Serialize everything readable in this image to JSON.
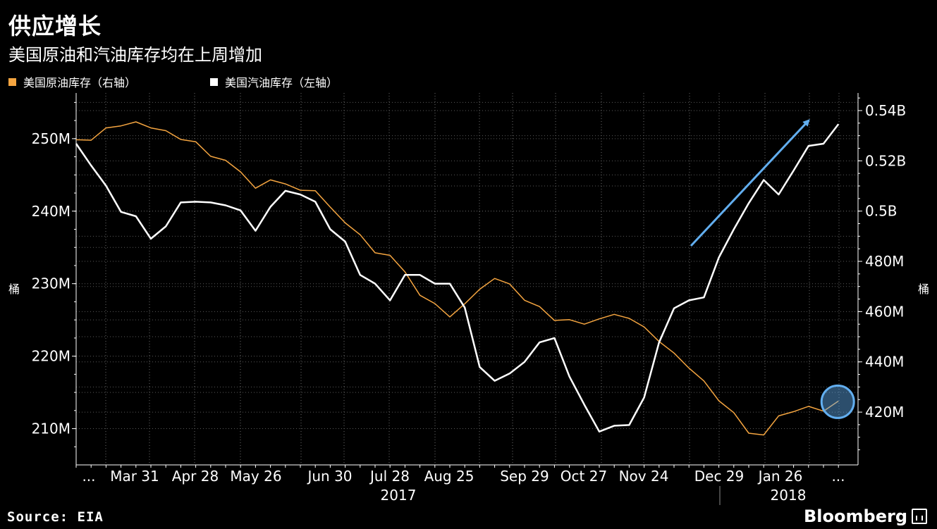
{
  "header": {
    "title": "供应增长",
    "subtitle": "美国原油和汽油库存均在上周增加"
  },
  "legend": [
    {
      "label": "美国原油库存（右轴）",
      "color": "#F5A540"
    },
    {
      "label": "美国汽油库存（左轴）",
      "color": "#FFFFFF"
    }
  ],
  "footer": {
    "source": "Source: EIA",
    "brand": "Bloomberg"
  },
  "chart_data": {
    "type": "line",
    "x_tick_labels": [
      "...",
      "Mar 31",
      "Apr 28",
      "May 26",
      "Jun 30",
      "Jul 28",
      "Aug 25",
      "Sep 29",
      "Oct 27",
      "Nov 24",
      "Dec 29",
      "Jan 26",
      "..."
    ],
    "x_year_labels": [
      "2017",
      "2018"
    ],
    "left_axis": {
      "label": "桶",
      "ticks": [
        "210M",
        "220M",
        "230M",
        "240M",
        "250M"
      ],
      "tick_values": [
        210,
        220,
        230,
        240,
        250
      ],
      "ylim": [
        205,
        256.3
      ]
    },
    "right_axis": {
      "label": "桶",
      "ticks": [
        "420M",
        "440M",
        "460M",
        "480M",
        "0.5B",
        "0.52B",
        "0.54B"
      ],
      "tick_values": [
        420,
        440,
        460,
        480,
        500,
        520,
        540
      ],
      "ylim": [
        399,
        547
      ]
    },
    "series": [
      {
        "name": "美国原油库存（右轴）",
        "axis": "right",
        "color": "#F5A540",
        "values": [
          528.4,
          528.2,
          533.1,
          533.9,
          535.5,
          533.1,
          532.0,
          528.5,
          527.6,
          521.8,
          520.2,
          515.6,
          509.1,
          512.4,
          510.8,
          508.3,
          508.1,
          501.6,
          495.3,
          490.6,
          483.4,
          482.4,
          475.8,
          466.5,
          463.2,
          457.9,
          463.1,
          468.9,
          473.2,
          471.0,
          464.5,
          462.0,
          456.5,
          456.8,
          455.0,
          457.1,
          458.9,
          457.3,
          453.9,
          448.1,
          443.5,
          437.5,
          432.4,
          424.5,
          419.8,
          411.6,
          410.9,
          418.5,
          420.2,
          422.3,
          420.4,
          424.4
        ]
      },
      {
        "name": "美国汽油库存（左轴）",
        "axis": "left",
        "color": "#FFFFFF",
        "values": [
          249.3,
          246.3,
          243.5,
          239.9,
          239.3,
          236.2,
          237.9,
          241.2,
          241.3,
          241.2,
          240.8,
          240.1,
          237.3,
          240.6,
          242.8,
          242.3,
          241.3,
          237.5,
          235.8,
          231.2,
          230.0,
          227.7,
          231.2,
          231.2,
          230.0,
          230.0,
          226.7,
          218.5,
          216.6,
          217.6,
          219.2,
          221.9,
          222.5,
          217.2,
          213.3,
          209.6,
          210.4,
          210.5,
          214.3,
          221.9,
          226.6,
          227.7,
          228.1,
          233.6,
          237.5,
          241.1,
          244.3,
          242.3,
          245.6,
          249.0,
          249.3,
          252.0
        ]
      }
    ],
    "annotations": [
      {
        "type": "arrow",
        "color": "#62AEEF",
        "description": "upward trend arrow"
      },
      {
        "type": "circle",
        "color": "#62AEEF",
        "target": "latest crude value"
      }
    ],
    "grid": true,
    "legend_position": "top-left"
  }
}
